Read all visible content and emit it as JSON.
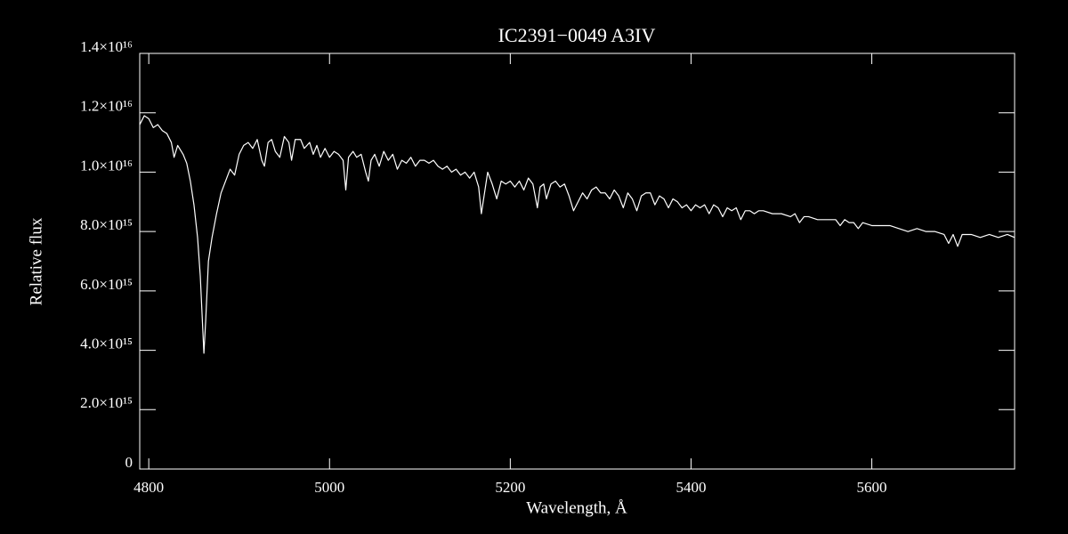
{
  "chart_data": {
    "type": "line",
    "title": "IC2391−0049   A3IV",
    "x_label": "Wavelength, Å",
    "y_label": "Relative flux",
    "xlim": [
      4790,
      5758
    ],
    "ylim": [
      0,
      1.4e+16
    ],
    "xticks": [
      4800,
      5000,
      5200,
      5400,
      5600
    ],
    "yticks": [
      0,
      {
        "value": 2000000000000000.0,
        "label": "2.0×10¹⁵"
      },
      {
        "value": 4000000000000000.0,
        "label": "4.0×10¹⁵"
      },
      {
        "value": 6000000000000000.0,
        "label": "6.0×10¹⁵"
      },
      {
        "value": 8000000000000000.0,
        "label": "8.0×10¹⁵"
      },
      {
        "value": 1e+16,
        "label": "1.0×10¹⁶"
      },
      {
        "value": 1.2e+16,
        "label": "1.2×10¹⁶"
      },
      {
        "value": 1.4e+16,
        "label": "1.4×10¹⁶"
      }
    ],
    "x": [
      4790,
      4795,
      4800,
      4805,
      4810,
      4815,
      4820,
      4825,
      4828,
      4832,
      4838,
      4842,
      4846,
      4850,
      4854,
      4857,
      4859,
      4861,
      4863,
      4866,
      4870,
      4875,
      4880,
      4885,
      4890,
      4895,
      4900,
      4905,
      4910,
      4915,
      4920,
      4925,
      4928,
      4932,
      4936,
      4940,
      4945,
      4950,
      4955,
      4958,
      4962,
      4968,
      4972,
      4978,
      4982,
      4986,
      4990,
      4995,
      5000,
      5005,
      5010,
      5015,
      5018,
      5021,
      5026,
      5030,
      5035,
      5040,
      5043,
      5046,
      5050,
      5055,
      5060,
      5065,
      5070,
      5075,
      5080,
      5085,
      5090,
      5095,
      5100,
      5105,
      5110,
      5115,
      5120,
      5125,
      5130,
      5135,
      5140,
      5145,
      5150,
      5155,
      5160,
      5165,
      5168,
      5172,
      5175,
      5180,
      5185,
      5190,
      5195,
      5200,
      5205,
      5210,
      5215,
      5220,
      5225,
      5230,
      5233,
      5237,
      5240,
      5245,
      5250,
      5255,
      5260,
      5265,
      5270,
      5275,
      5280,
      5285,
      5290,
      5295,
      5300,
      5305,
      5310,
      5315,
      5320,
      5325,
      5330,
      5335,
      5340,
      5345,
      5350,
      5355,
      5360,
      5365,
      5370,
      5375,
      5380,
      5385,
      5390,
      5395,
      5400,
      5405,
      5410,
      5415,
      5420,
      5425,
      5430,
      5435,
      5440,
      5445,
      5450,
      5455,
      5460,
      5465,
      5470,
      5475,
      5480,
      5490,
      5500,
      5510,
      5515,
      5520,
      5525,
      5530,
      5540,
      5550,
      5560,
      5565,
      5570,
      5575,
      5580,
      5585,
      5590,
      5600,
      5610,
      5620,
      5630,
      5640,
      5650,
      5660,
      5670,
      5680,
      5685,
      5690,
      5695,
      5700,
      5710,
      5720,
      5730,
      5740,
      5750,
      5758
    ],
    "series": [
      {
        "name": "flux",
        "color": "#ffffff",
        "values": [
          1.16e+16,
          1.19e+16,
          1.18e+16,
          1.15e+16,
          1.16e+16,
          1.14e+16,
          1.13e+16,
          1.1e+16,
          1.05e+16,
          1.09e+16,
          1.06e+16,
          1.03e+16,
          9700000000000000.0,
          8900000000000000.0,
          7800000000000000.0,
          6500000000000000.0,
          5200000000000000.0,
          3900000000000000.0,
          5000000000000000.0,
          7000000000000000.0,
          7800000000000000.0,
          8600000000000000.0,
          9300000000000000.0,
          9700000000000000.0,
          1.01e+16,
          9900000000000000.0,
          1.06e+16,
          1.09e+16,
          1.1e+16,
          1.08e+16,
          1.11e+16,
          1.04e+16,
          1.02e+16,
          1.1e+16,
          1.11e+16,
          1.07e+16,
          1.05e+16,
          1.12e+16,
          1.1e+16,
          1.04e+16,
          1.11e+16,
          1.11e+16,
          1.08e+16,
          1.1e+16,
          1.06e+16,
          1.09e+16,
          1.05e+16,
          1.08e+16,
          1.05e+16,
          1.07e+16,
          1.06e+16,
          1.04e+16,
          9400000000000000.0,
          1.05e+16,
          1.07e+16,
          1.05e+16,
          1.06e+16,
          1e+16,
          9700000000000000.0,
          1.04e+16,
          1.06e+16,
          1.02e+16,
          1.07e+16,
          1.04e+16,
          1.06e+16,
          1.01e+16,
          1.04e+16,
          1.03e+16,
          1.05e+16,
          1.02e+16,
          1.04e+16,
          1.04e+16,
          1.03e+16,
          1.04e+16,
          1.02e+16,
          1.01e+16,
          1.02e+16,
          1e+16,
          1.01e+16,
          9900000000000000.0,
          1e+16,
          9800000000000000.0,
          1e+16,
          9500000000000000.0,
          8600000000000000.0,
          9400000000000000.0,
          1e+16,
          9600000000000000.0,
          9100000000000000.0,
          9700000000000000.0,
          9600000000000000.0,
          9700000000000000.0,
          9500000000000000.0,
          9700000000000000.0,
          9400000000000000.0,
          9800000000000000.0,
          9600000000000000.0,
          8800000000000000.0,
          9500000000000000.0,
          9600000000000000.0,
          9100000000000000.0,
          9600000000000000.0,
          9700000000000000.0,
          9500000000000000.0,
          9600000000000000.0,
          9200000000000000.0,
          8700000000000000.0,
          9000000000000000.0,
          9300000000000000.0,
          9100000000000000.0,
          9400000000000000.0,
          9500000000000000.0,
          9300000000000000.0,
          9300000000000000.0,
          9100000000000000.0,
          9400000000000000.0,
          9200000000000000.0,
          8800000000000000.0,
          9300000000000000.0,
          9100000000000000.0,
          8700000000000000.0,
          9200000000000000.0,
          9300000000000000.0,
          9300000000000000.0,
          8900000000000000.0,
          9200000000000000.0,
          9100000000000000.0,
          8800000000000000.0,
          9100000000000000.0,
          9000000000000000.0,
          8800000000000000.0,
          8900000000000000.0,
          8700000000000000.0,
          8900000000000000.0,
          8800000000000000.0,
          8900000000000000.0,
          8600000000000000.0,
          8900000000000000.0,
          8800000000000000.0,
          8500000000000000.0,
          8800000000000000.0,
          8700000000000000.0,
          8800000000000000.0,
          8400000000000000.0,
          8700000000000000.0,
          8700000000000000.0,
          8600000000000000.0,
          8700000000000000.0,
          8700000000000000.0,
          8600000000000000.0,
          8600000000000000.0,
          8500000000000000.0,
          8600000000000000.0,
          8300000000000000.0,
          8500000000000000.0,
          8500000000000000.0,
          8400000000000000.0,
          8400000000000000.0,
          8400000000000000.0,
          8200000000000000.0,
          8400000000000000.0,
          8300000000000000.0,
          8300000000000000.0,
          8100000000000000.0,
          8300000000000000.0,
          8200000000000000.0,
          8200000000000000.0,
          8200000000000000.0,
          8100000000000000.0,
          8000000000000000.0,
          8100000000000000.0,
          8000000000000000.0,
          8000000000000000.0,
          7900000000000000.0,
          7600000000000000.0,
          7900000000000000.0,
          7500000000000000.0,
          7900000000000000.0,
          7900000000000000.0,
          7800000000000000.0,
          7900000000000000.0,
          7800000000000000.0,
          7900000000000000.0,
          7800000000000000.0
        ]
      }
    ]
  }
}
